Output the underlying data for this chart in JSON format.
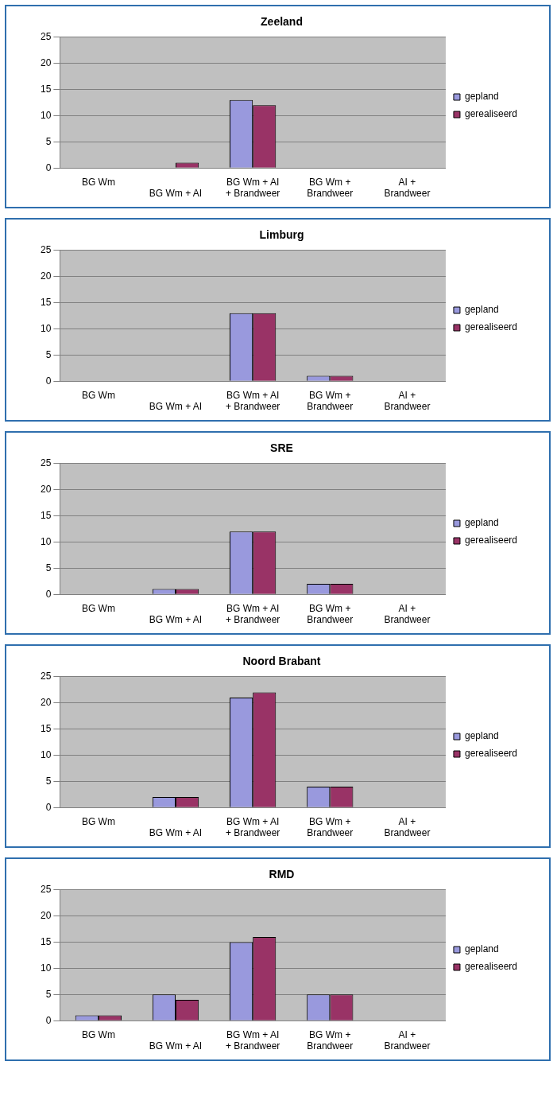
{
  "chart_data": [
    {
      "type": "bar",
      "title": "Zeeland",
      "categories": [
        "BG Wm",
        "BG Wm + AI",
        "BG Wm + AI + Brandweer",
        "BG Wm + Brandweer",
        "AI + Brandweer"
      ],
      "series": [
        {
          "name": "gepland",
          "color": "#9999dd",
          "values": [
            0,
            0,
            13,
            0,
            0
          ]
        },
        {
          "name": "gerealiseerd",
          "color": "#993366",
          "values": [
            0,
            1,
            12,
            0,
            0
          ]
        }
      ],
      "ylim": [
        0,
        25
      ],
      "yticks": [
        0,
        5,
        10,
        15,
        20,
        25
      ],
      "grid": "y",
      "legend": "right"
    },
    {
      "type": "bar",
      "title": "Limburg",
      "categories": [
        "BG Wm",
        "BG Wm + AI",
        "BG Wm + AI + Brandweer",
        "BG Wm + Brandweer",
        "AI + Brandweer"
      ],
      "series": [
        {
          "name": "gepland",
          "color": "#9999dd",
          "values": [
            0,
            0,
            13,
            1,
            0
          ]
        },
        {
          "name": "gerealiseerd",
          "color": "#993366",
          "values": [
            0,
            0,
            13,
            1,
            0
          ]
        }
      ],
      "ylim": [
        0,
        25
      ],
      "yticks": [
        0,
        5,
        10,
        15,
        20,
        25
      ],
      "grid": "y",
      "legend": "right"
    },
    {
      "type": "bar",
      "title": "SRE",
      "categories": [
        "BG Wm",
        "BG Wm + AI",
        "BG Wm + AI + Brandweer",
        "BG Wm + Brandweer",
        "AI + Brandweer"
      ],
      "series": [
        {
          "name": "gepland",
          "color": "#9999dd",
          "values": [
            0,
            1,
            12,
            2,
            0
          ]
        },
        {
          "name": "gerealiseerd",
          "color": "#993366",
          "values": [
            0,
            1,
            12,
            2,
            0
          ]
        }
      ],
      "ylim": [
        0,
        25
      ],
      "yticks": [
        0,
        5,
        10,
        15,
        20,
        25
      ],
      "grid": "y",
      "legend": "right"
    },
    {
      "type": "bar",
      "title": "Noord Brabant",
      "categories": [
        "BG Wm",
        "BG Wm + AI",
        "BG Wm + AI + Brandweer",
        "BG Wm + Brandweer",
        "AI + Brandweer"
      ],
      "series": [
        {
          "name": "gepland",
          "color": "#9999dd",
          "values": [
            0,
            2,
            21,
            4,
            0
          ]
        },
        {
          "name": "gerealiseerd",
          "color": "#993366",
          "values": [
            0,
            2,
            22,
            4,
            0
          ]
        }
      ],
      "ylim": [
        0,
        25
      ],
      "yticks": [
        0,
        5,
        10,
        15,
        20,
        25
      ],
      "grid": "y",
      "legend": "right"
    },
    {
      "type": "bar",
      "title": "RMD",
      "categories": [
        "BG Wm",
        "BG Wm + AI",
        "BG Wm + AI + Brandweer",
        "BG Wm + Brandweer",
        "AI + Brandweer"
      ],
      "series": [
        {
          "name": "gepland",
          "color": "#9999dd",
          "values": [
            1,
            5,
            15,
            5,
            0
          ]
        },
        {
          "name": "gerealiseerd",
          "color": "#993366",
          "values": [
            1,
            4,
            16,
            5,
            0
          ]
        }
      ],
      "ylim": [
        0,
        25
      ],
      "yticks": [
        0,
        5,
        10,
        15,
        20,
        25
      ],
      "grid": "y",
      "legend": "right"
    }
  ]
}
